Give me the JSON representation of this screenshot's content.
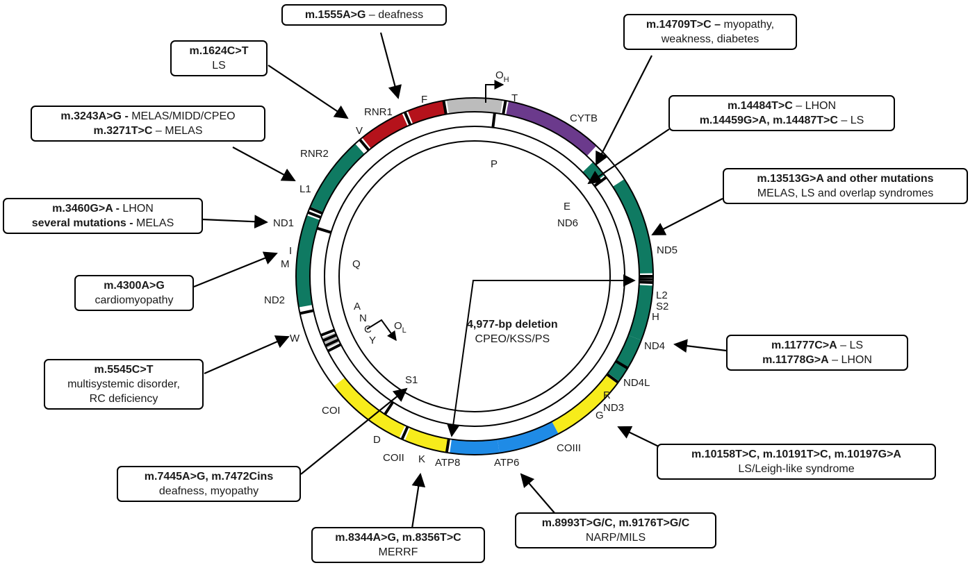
{
  "genes": {
    "RNR1": "RNR1",
    "RNR2": "RNR2",
    "ND1": "ND1",
    "ND2": "ND2",
    "COI": "COI",
    "COII": "COII",
    "ATP8": "ATP8",
    "ATP6": "ATP6",
    "COIII": "COIII",
    "ND3": "ND3",
    "ND4L": "ND4L",
    "ND4": "ND4",
    "ND5": "ND5",
    "ND6": "ND6",
    "CYTB": "CYTB"
  },
  "trnas": {
    "F": "F",
    "V": "V",
    "L1": "L1",
    "I": "I",
    "M": "M",
    "Q": "Q",
    "W": "W",
    "A": "A",
    "N": "N",
    "C": "C",
    "Y": "Y",
    "S1": "S1",
    "D": "D",
    "K": "K",
    "G": "G",
    "R": "R",
    "H": "H",
    "S2": "S2",
    "L2": "L2",
    "E": "E",
    "T": "T",
    "P": "P"
  },
  "origins": {
    "OH_main": "O",
    "OH_sub": "H",
    "OL_main": "O",
    "OL_sub": "L"
  },
  "deletion": {
    "title": "4,977-bp deletion",
    "desc": "CPEO/KSS/PS"
  },
  "mutations": [
    {
      "id": "m1555",
      "bold": "m.1555A>G",
      "rest": " – deafness"
    },
    {
      "id": "m1624",
      "bold": "m.1624C>T",
      "line2": "LS"
    },
    {
      "id": "m3243",
      "bold": "m.3243A>G -",
      "rest": " MELAS/MIDD/CPEO",
      "bold2": "m.3271T>C",
      "rest2": " – MELAS"
    },
    {
      "id": "m3460",
      "bold": "m.3460G>A -",
      "rest": " LHON",
      "bold2": "several mutations -",
      "rest2": " MELAS"
    },
    {
      "id": "m4300",
      "bold": "m.4300A>G",
      "line2": "cardiomyopathy"
    },
    {
      "id": "m5545",
      "bold": "m.5545C>T",
      "line2": "multisystemic disorder,",
      "line3": "RC deficiency"
    },
    {
      "id": "m7445",
      "bold": "m.7445A>G, m.7472Cins",
      "line2": "deafness, myopathy"
    },
    {
      "id": "m8344",
      "bold": "m.8344A>G, m.8356T>C",
      "line2": "MERRF"
    },
    {
      "id": "m8993",
      "bold": "m.8993T>G/C, m.9176T>G/C",
      "line2": "NARP/MILS"
    },
    {
      "id": "m10158",
      "bold": "m.10158T>C, m.10191T>C, m.10197G>A",
      "line2": "LS/Leigh-like syndrome"
    },
    {
      "id": "m11777",
      "bold": "m.11777C>A",
      "rest": " – LS",
      "bold2": "m.11778G>A",
      "rest2": " – LHON"
    },
    {
      "id": "m13513",
      "bold": "m.13513G>A and other mutations",
      "line2": "MELAS, LS and overlap syndromes"
    },
    {
      "id": "m14484",
      "bold": "m.14484T>C",
      "rest": " – LHON",
      "bold2": "m.14459G>A, m.14487T>C",
      "rest2": " – LS"
    },
    {
      "id": "m14709",
      "bold": "m.14709T>C –",
      "rest": " myopathy,",
      "line2": "weakness, diabetes"
    }
  ],
  "colors": {
    "rRNA": "#b5121b",
    "complexI": "#0f7a62",
    "complexIII": "#6b3a8c",
    "complexIV": "#f7ec1b",
    "complexV": "#1f8be6",
    "control": "#bcbcbc",
    "tRNA": "#000000",
    "outline": "#000000"
  }
}
